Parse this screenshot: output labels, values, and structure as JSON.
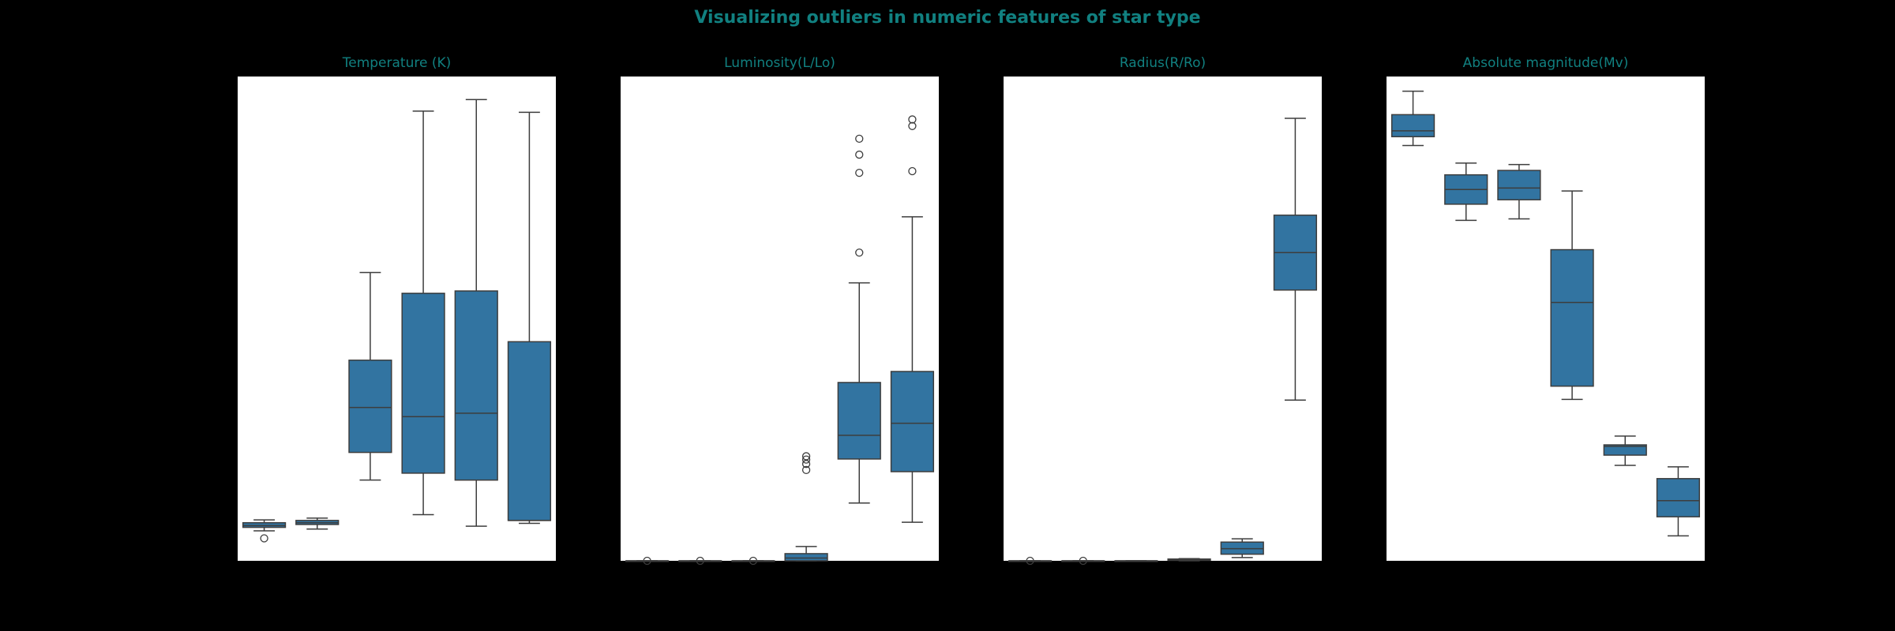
{
  "figure": {
    "title": "Visualizing outliers in numeric features of star type",
    "title_color": "#118080",
    "background": "#000000",
    "box_color": "#3274a1",
    "line_color": "#3d3d3d"
  },
  "chart_data": [
    {
      "type": "box",
      "title": "Temperature (K)",
      "xlabel": "",
      "ylabel": "",
      "ylim": [
        0,
        42000
      ],
      "boxes": [
        {
          "whislo": 2600,
          "q1": 2900,
          "med": 3050,
          "q3": 3300,
          "whishi": 3550,
          "fliers": [
            1950
          ]
        },
        {
          "whislo": 2750,
          "q1": 3150,
          "med": 3300,
          "q3": 3500,
          "whishi": 3700,
          "fliers": []
        },
        {
          "whislo": 7000,
          "q1": 9400,
          "med": 13300,
          "q3": 17400,
          "whishi": 25000,
          "fliers": []
        },
        {
          "whislo": 4000,
          "q1": 7600,
          "med": 12500,
          "q3": 23200,
          "whishi": 39000,
          "fliers": []
        },
        {
          "whislo": 3000,
          "q1": 7000,
          "med": 12800,
          "q3": 23400,
          "whishi": 40000,
          "fliers": []
        },
        {
          "whislo": 3250,
          "q1": 3500,
          "med": 3500,
          "q3": 19000,
          "whishi": 38900,
          "fliers": []
        }
      ]
    },
    {
      "type": "box",
      "title": "Luminosity(L/Lo)",
      "xlabel": "",
      "ylabel": "",
      "ylim": [
        0,
        880000
      ],
      "boxes": [
        {
          "whislo": 0,
          "q1": 0,
          "med": 0,
          "q3": 0,
          "whishi": 0,
          "fliers": [
            0
          ]
        },
        {
          "whislo": 0,
          "q1": 0,
          "med": 0,
          "q3": 0,
          "whishi": 0,
          "fliers": [
            0
          ]
        },
        {
          "whislo": 0,
          "q1": 0,
          "med": 0,
          "q3": 0,
          "whishi": 0,
          "fliers": [
            0
          ]
        },
        {
          "whislo": 0,
          "q1": 0,
          "med": 5000,
          "q3": 13000,
          "whishi": 26000,
          "fliers": [
            165000,
            176000,
            184000,
            190000
          ]
        },
        {
          "whislo": 105000,
          "q1": 185000,
          "med": 228000,
          "q3": 324000,
          "whishi": 505000,
          "fliers": [
            560000,
            705000,
            738000,
            767000
          ]
        },
        {
          "whislo": 70000,
          "q1": 162000,
          "med": 250000,
          "q3": 344000,
          "whishi": 625000,
          "fliers": [
            708000,
            790000,
            802000
          ]
        }
      ]
    },
    {
      "type": "box",
      "title": "Radius(R/Ro)",
      "xlabel": "",
      "ylabel": "",
      "ylim": [
        0,
        2200
      ],
      "boxes": [
        {
          "whislo": 0,
          "q1": 0,
          "med": 0,
          "q3": 0,
          "whishi": 0,
          "fliers": [
            0
          ]
        },
        {
          "whislo": 0,
          "q1": 0,
          "med": 0,
          "q3": 0,
          "whishi": 0,
          "fliers": [
            0
          ]
        },
        {
          "whislo": 0,
          "q1": 0,
          "med": 0,
          "q3": 0,
          "whishi": 0,
          "fliers": []
        },
        {
          "whislo": 0,
          "q1": 2,
          "med": 5,
          "q3": 8,
          "whishi": 10,
          "fliers": []
        },
        {
          "whislo": 15,
          "q1": 30,
          "med": 55,
          "q3": 85,
          "whishi": 100,
          "fliers": []
        },
        {
          "whislo": 730,
          "q1": 1230,
          "med": 1400,
          "q3": 1570,
          "whishi": 2010,
          "fliers": []
        }
      ]
    },
    {
      "type": "box",
      "title": "Absolute magnitude(Mv)",
      "xlabel": "",
      "ylabel": "",
      "ylim": [
        -12,
        21
      ],
      "boxes": [
        {
          "whislo": 16.3,
          "q1": 16.9,
          "med": 17.3,
          "q3": 18.4,
          "whishi": 20.0,
          "fliers": []
        },
        {
          "whislo": 11.2,
          "q1": 12.3,
          "med": 13.3,
          "q3": 14.3,
          "whishi": 15.1,
          "fliers": []
        },
        {
          "whislo": 11.3,
          "q1": 12.6,
          "med": 13.4,
          "q3": 14.6,
          "whishi": 15.0,
          "fliers": []
        },
        {
          "whislo": -1.0,
          "q1": -0.1,
          "med": 5.6,
          "q3": 9.2,
          "whishi": 13.2,
          "fliers": []
        },
        {
          "whislo": -5.5,
          "q1": -4.8,
          "med": -4.2,
          "q3": -4.1,
          "whishi": -3.5,
          "fliers": []
        },
        {
          "whislo": -10.3,
          "q1": -9.0,
          "med": -7.9,
          "q3": -6.4,
          "whishi": -5.6,
          "fliers": []
        }
      ]
    }
  ]
}
